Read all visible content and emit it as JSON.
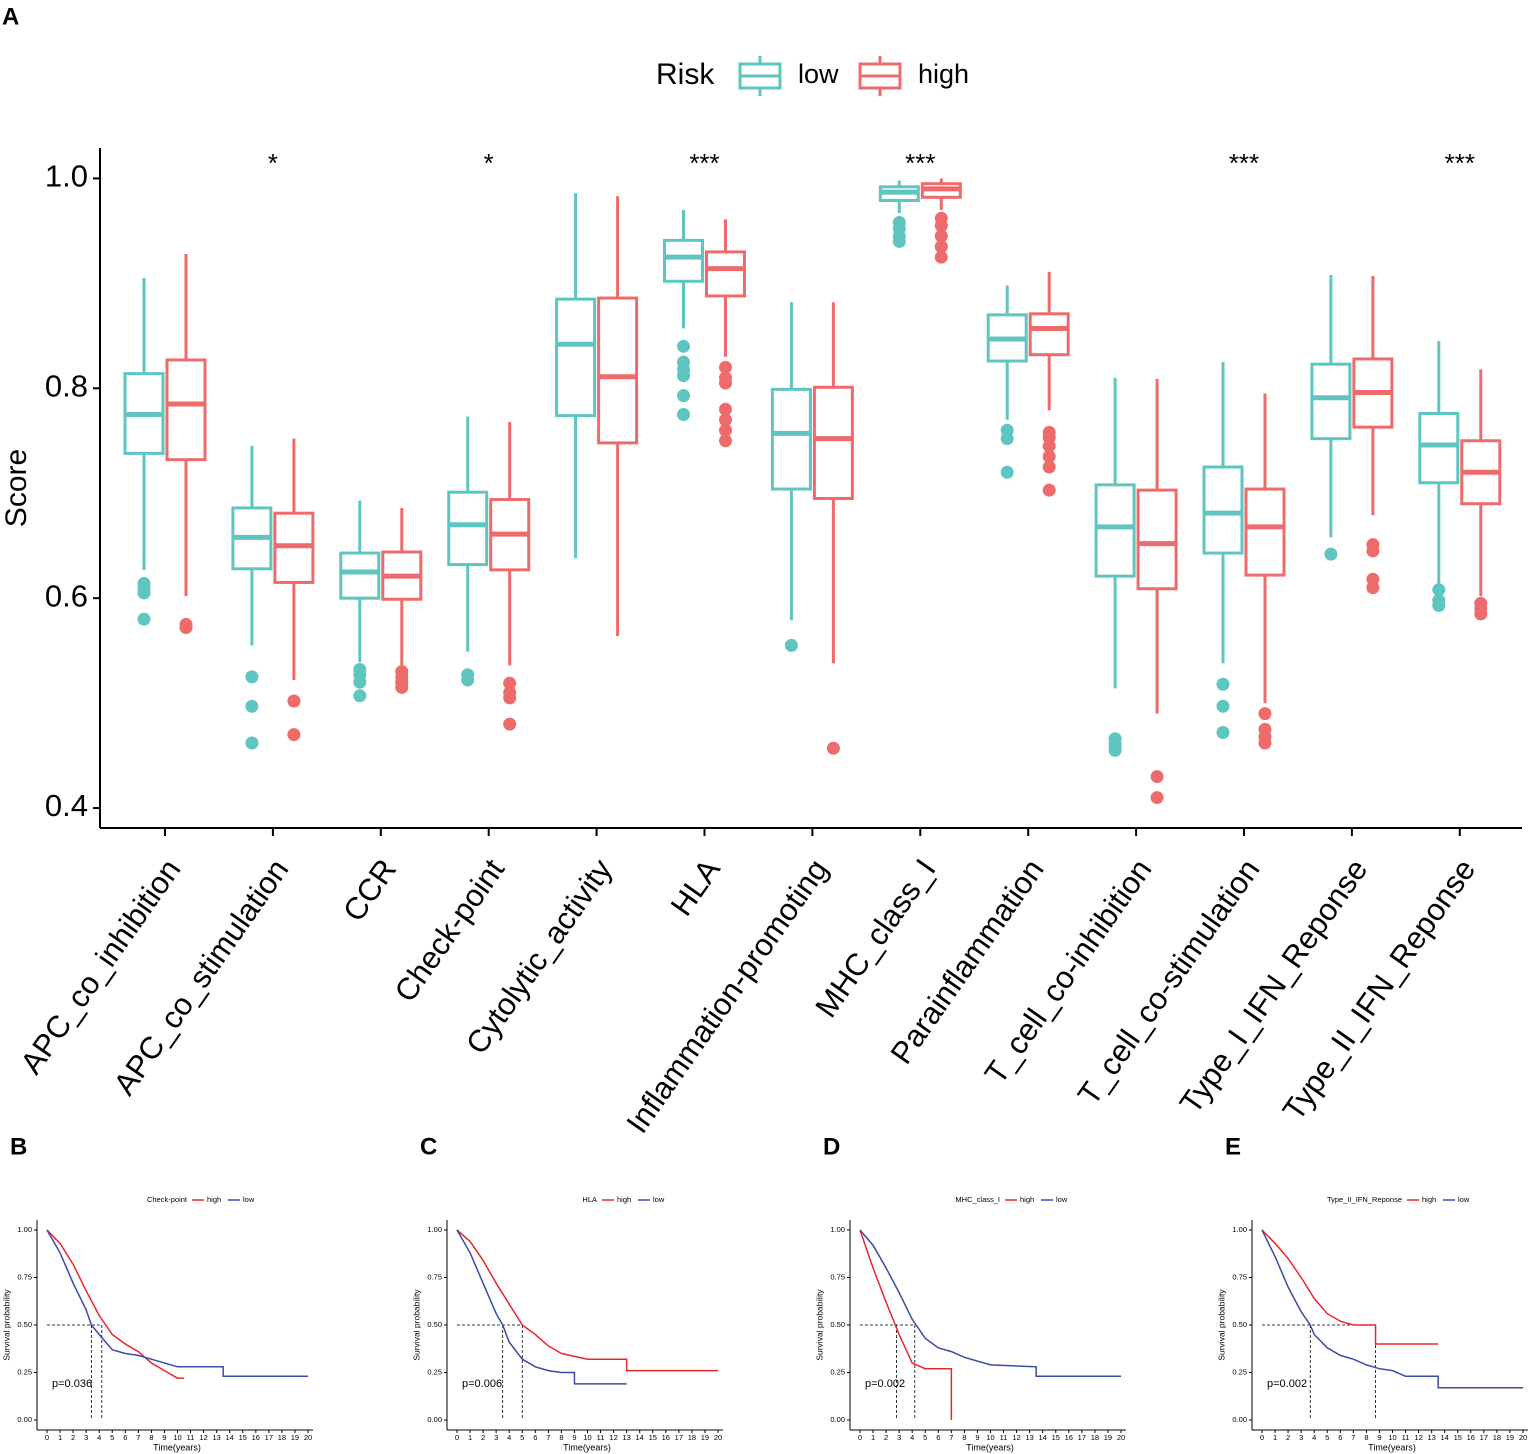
{
  "chart_data": [
    {
      "type": "box",
      "panel": "A",
      "legend_title": "Risk",
      "ylabel": "Score",
      "ylim": [
        0.381,
        1.029
      ],
      "yticks": [
        0.4,
        0.6,
        0.8,
        {
          "value": 1,
          "label": "1.0"
        }
      ],
      "categories": [
        "APC_co_inhibition",
        "APC_co_stimulation",
        "CCR",
        "Check-point",
        "Cytolytic_activity",
        "HLA",
        "Inflammation-promoting",
        "MHC_class_I",
        "Parainflammation",
        "T_cell_co-inhibition",
        "T_cell_co-stimulation",
        "Type_I_IFN_Reponse",
        "Type_II_IFN_Reponse"
      ],
      "significance": [
        null,
        "*",
        null,
        "*",
        null,
        "***",
        null,
        "***",
        null,
        null,
        "***",
        null,
        "***"
      ],
      "series": [
        {
          "name": "low",
          "color": "#5ec5c1",
          "values": [
            [
              0.627,
              0.738,
              0.775,
              0.814,
              0.905
            ],
            [
              0.555,
              0.628,
              0.658,
              0.686,
              0.745
            ],
            [
              0.539,
              0.6,
              0.625,
              0.643,
              0.693
            ],
            [
              0.549,
              0.632,
              0.67,
              0.701,
              0.773
            ],
            [
              0.638,
              0.774,
              0.842,
              0.885,
              0.986
            ],
            [
              0.857,
              0.902,
              0.925,
              0.941,
              0.97
            ],
            [
              0.579,
              0.704,
              0.757,
              0.799,
              0.882
            ],
            [
              0.967,
              0.979,
              0.987,
              0.992,
              0.998
            ],
            [
              0.77,
              0.826,
              0.847,
              0.87,
              0.898
            ],
            [
              0.514,
              0.621,
              0.668,
              0.708,
              0.81
            ],
            [
              0.538,
              0.643,
              0.681,
              0.725,
              0.825
            ],
            [
              0.658,
              0.752,
              0.791,
              0.823,
              0.908
            ],
            [
              0.613,
              0.71,
              0.746,
              0.776,
              0.845
            ]
          ],
          "outliers": [
            [
              0.614,
              0.61,
              0.605,
              0.58
            ],
            [
              0.525,
              0.497,
              0.462
            ],
            [
              0.532,
              0.527,
              0.52,
              0.507
            ],
            [
              0.527,
              0.522
            ],
            [],
            [
              0.84,
              0.825,
              0.818,
              0.812,
              0.793,
              0.775
            ],
            [
              0.555
            ],
            [
              0.958,
              0.952,
              0.945,
              0.94
            ],
            [
              0.76,
              0.752,
              0.72
            ],
            [
              0.466,
              0.462,
              0.458,
              0.455
            ],
            [
              0.518,
              0.497,
              0.472
            ],
            [
              0.642
            ],
            [
              0.608,
              0.598,
              0.593
            ]
          ]
        },
        {
          "name": "high",
          "color": "#ee6b6b",
          "values": [
            [
              0.602,
              0.732,
              0.785,
              0.827,
              0.928
            ],
            [
              0.522,
              0.615,
              0.65,
              0.681,
              0.752
            ],
            [
              0.536,
              0.599,
              0.621,
              0.644,
              0.686
            ],
            [
              0.536,
              0.627,
              0.661,
              0.694,
              0.768
            ],
            [
              0.564,
              0.748,
              0.811,
              0.886,
              0.983
            ],
            [
              0.83,
              0.888,
              0.914,
              0.93,
              0.961
            ],
            [
              0.538,
              0.695,
              0.752,
              0.801,
              0.882
            ],
            [
              0.97,
              0.982,
              0.99,
              0.995,
              1.0
            ],
            [
              0.779,
              0.832,
              0.857,
              0.871,
              0.911
            ],
            [
              0.49,
              0.609,
              0.652,
              0.703,
              0.809
            ],
            [
              0.5,
              0.622,
              0.668,
              0.704,
              0.795
            ],
            [
              0.679,
              0.763,
              0.796,
              0.828,
              0.907
            ],
            [
              0.602,
              0.69,
              0.72,
              0.75,
              0.818
            ]
          ],
          "outliers": [
            [
              0.575,
              0.572
            ],
            [
              0.502,
              0.47
            ],
            [
              0.53,
              0.525,
              0.52,
              0.515
            ],
            [
              0.519,
              0.51,
              0.505,
              0.48
            ],
            [],
            [
              0.82,
              0.81,
              0.805,
              0.78,
              0.77,
              0.76,
              0.75
            ],
            [
              0.457
            ],
            [
              0.962,
              0.955,
              0.945,
              0.935,
              0.925
            ],
            [
              0.758,
              0.753,
              0.745,
              0.735,
              0.725,
              0.703
            ],
            [
              0.43,
              0.41
            ],
            [
              0.49,
              0.475,
              0.468,
              0.462
            ],
            [
              0.651,
              0.645,
              0.618,
              0.61
            ],
            [
              0.595,
              0.59,
              0.585
            ]
          ]
        }
      ]
    },
    {
      "type": "survival",
      "panel": "B",
      "legend_title": "Check-point",
      "xlabel": "Time(years)",
      "ylabel": "Survival probability",
      "annotation": "p=0.036",
      "xlim": [
        0,
        20
      ],
      "xticks": [
        0,
        1,
        2,
        3,
        4,
        5,
        6,
        7,
        8,
        9,
        10,
        11,
        12,
        13,
        14,
        15,
        16,
        17,
        18,
        19,
        20
      ],
      "ylim": [
        0,
        1
      ],
      "yticks": [
        {
          "value": 0,
          "label": "0.00"
        },
        {
          "value": 0.25,
          "label": "0.25"
        },
        {
          "value": 0.5,
          "label": "0.50"
        },
        {
          "value": 0.75,
          "label": "0.75"
        },
        {
          "value": 1,
          "label": "1.00"
        }
      ],
      "median_x": [
        4.2,
        3.4
      ],
      "series": [
        {
          "name": "high",
          "color": "#e8262b",
          "x": [
            0,
            1,
            2,
            3,
            4,
            5,
            6,
            7,
            8,
            9,
            10,
            10.5
          ],
          "values": [
            1,
            0.93,
            0.82,
            0.68,
            0.55,
            0.45,
            0.4,
            0.36,
            0.3,
            0.26,
            0.22,
            0.22
          ]
        },
        {
          "name": "low",
          "color": "#3a4aa8",
          "x": [
            0,
            1,
            2,
            3,
            3.4,
            4,
            5,
            6,
            7,
            8,
            10,
            13.5,
            13.5,
            20
          ],
          "values": [
            1,
            0.88,
            0.72,
            0.58,
            0.5,
            0.45,
            0.37,
            0.35,
            0.34,
            0.32,
            0.28,
            0.28,
            0.23,
            0.23
          ]
        }
      ]
    },
    {
      "type": "survival",
      "panel": "C",
      "legend_title": "HLA",
      "xlabel": "Time(years)",
      "ylabel": "Survival probability",
      "annotation": "p=0.006",
      "xlim": [
        0,
        20
      ],
      "xticks": [
        0,
        1,
        2,
        3,
        4,
        5,
        6,
        7,
        8,
        9,
        10,
        11,
        12,
        13,
        14,
        15,
        16,
        17,
        18,
        19,
        20
      ],
      "ylim": [
        0,
        1
      ],
      "yticks": [
        {
          "value": 0,
          "label": "0.00"
        },
        {
          "value": 0.25,
          "label": "0.25"
        },
        {
          "value": 0.5,
          "label": "0.50"
        },
        {
          "value": 0.75,
          "label": "0.75"
        },
        {
          "value": 1,
          "label": "1.00"
        }
      ],
      "median_x": [
        5.0,
        3.5
      ],
      "series": [
        {
          "name": "high",
          "color": "#e8262b",
          "x": [
            0,
            1,
            2,
            3,
            4,
            5,
            6,
            7,
            8,
            10,
            13,
            13,
            20
          ],
          "values": [
            1,
            0.94,
            0.84,
            0.72,
            0.61,
            0.5,
            0.45,
            0.39,
            0.35,
            0.32,
            0.32,
            0.26,
            0.26
          ]
        },
        {
          "name": "low",
          "color": "#3a4aa8",
          "x": [
            0,
            1,
            2,
            3,
            3.5,
            4,
            5,
            6,
            7,
            8,
            9,
            9,
            13
          ],
          "values": [
            1,
            0.88,
            0.72,
            0.56,
            0.5,
            0.41,
            0.32,
            0.28,
            0.26,
            0.25,
            0.25,
            0.19,
            0.19
          ]
        }
      ]
    },
    {
      "type": "survival",
      "panel": "D",
      "legend_title": "MHC_class_I",
      "xlabel": "Time(years)",
      "ylabel": "Survival probability",
      "annotation": "p=0.002",
      "xlim": [
        0,
        20
      ],
      "xticks": [
        0,
        1,
        2,
        3,
        4,
        5,
        6,
        7,
        8,
        9,
        10,
        11,
        12,
        13,
        14,
        15,
        16,
        17,
        18,
        19,
        20
      ],
      "ylim": [
        0,
        1
      ],
      "yticks": [
        {
          "value": 0,
          "label": "0.00"
        },
        {
          "value": 0.25,
          "label": "0.25"
        },
        {
          "value": 0.5,
          "label": "0.50"
        },
        {
          "value": 0.75,
          "label": "0.75"
        },
        {
          "value": 1,
          "label": "1.00"
        }
      ],
      "median_x": [
        2.8,
        4.2
      ],
      "series": [
        {
          "name": "high",
          "color": "#e8262b",
          "x": [
            0,
            1,
            2,
            3,
            4,
            5,
            7,
            7
          ],
          "values": [
            1,
            0.8,
            0.62,
            0.45,
            0.3,
            0.27,
            0.27,
            0
          ]
        },
        {
          "name": "low",
          "color": "#3a4aa8",
          "x": [
            0,
            1,
            2,
            3,
            4,
            5,
            6,
            7,
            8,
            10,
            13.5,
            13.5,
            20
          ],
          "values": [
            1,
            0.92,
            0.8,
            0.67,
            0.53,
            0.43,
            0.38,
            0.36,
            0.33,
            0.29,
            0.28,
            0.23,
            0.23
          ]
        }
      ]
    },
    {
      "type": "survival",
      "panel": "E",
      "legend_title": "Type_II_IFN_Reponse",
      "xlabel": "Time(years)",
      "ylabel": "Survival probability",
      "annotation": "p=0.002",
      "xlim": [
        0,
        20
      ],
      "xticks": [
        0,
        1,
        2,
        3,
        4,
        5,
        6,
        7,
        8,
        9,
        10,
        11,
        12,
        13,
        14,
        15,
        16,
        17,
        18,
        19,
        20
      ],
      "ylim": [
        0,
        1
      ],
      "yticks": [
        {
          "value": 0,
          "label": "0.00"
        },
        {
          "value": 0.25,
          "label": "0.25"
        },
        {
          "value": 0.5,
          "label": "0.50"
        },
        {
          "value": 0.75,
          "label": "0.75"
        },
        {
          "value": 1,
          "label": "1.00"
        }
      ],
      "median_x": [
        8.7,
        3.7
      ],
      "series": [
        {
          "name": "high",
          "color": "#e8262b",
          "x": [
            0,
            1,
            2,
            3,
            4,
            5,
            6,
            7,
            8.7,
            8.7,
            13.5
          ],
          "values": [
            1,
            0.93,
            0.85,
            0.75,
            0.64,
            0.56,
            0.52,
            0.5,
            0.5,
            0.4,
            0.4
          ]
        },
        {
          "name": "low",
          "color": "#3a4aa8",
          "x": [
            0,
            1,
            2,
            3,
            3.7,
            4,
            5,
            6,
            7,
            8,
            9,
            10,
            11,
            13.5,
            13.5,
            20
          ],
          "values": [
            1,
            0.86,
            0.7,
            0.57,
            0.5,
            0.45,
            0.38,
            0.34,
            0.32,
            0.29,
            0.27,
            0.26,
            0.23,
            0.23,
            0.17,
            0.17
          ]
        }
      ]
    }
  ]
}
